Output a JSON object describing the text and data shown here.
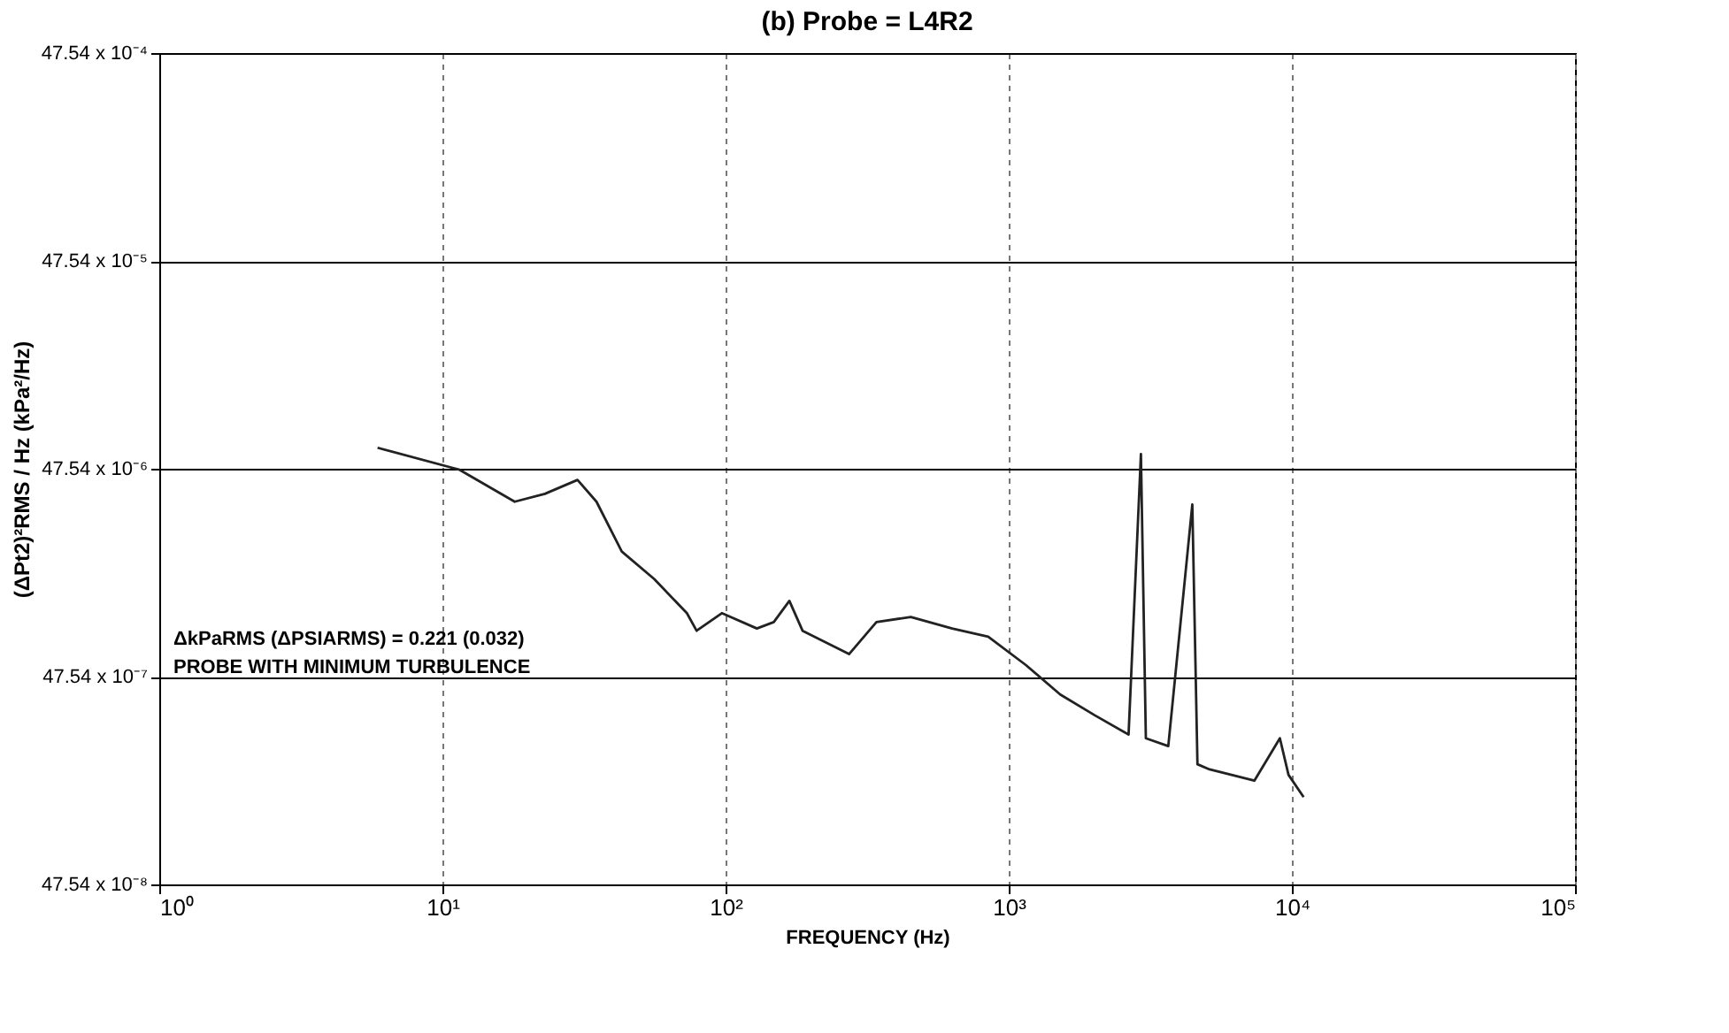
{
  "chart_data": {
    "type": "line",
    "title": "(b) Probe = L4R2",
    "xlabel": "FREQUENCY (Hz)",
    "ylabel": "(ΔPt2)²RMS / Hz  (kPa²/Hz)",
    "log": "xy",
    "grid": true,
    "line_style": "solid",
    "marker": "none",
    "legend": false,
    "xlim": [
      1,
      100000
    ],
    "xticks": [
      {
        "value": 1,
        "label": "10⁰"
      },
      {
        "value": 10,
        "label": "10¹"
      },
      {
        "value": 100,
        "label": "10²"
      },
      {
        "value": 1000,
        "label": "10³"
      },
      {
        "value": 10000,
        "label": "10⁴"
      },
      {
        "value": 100000,
        "label": "10⁵"
      }
    ],
    "ylim": [
      4.754e-07,
      0.004754
    ],
    "yticks": [
      {
        "value": 4.754e-07,
        "label": "47.54 x 10⁻⁸"
      },
      {
        "value": 4.754e-06,
        "label": "47.54 x 10⁻⁷"
      },
      {
        "value": 4.754e-05,
        "label": "47.54 x 10⁻⁶"
      },
      {
        "value": 0.0004754,
        "label": "47.54 x 10⁻⁵"
      },
      {
        "value": 0.004754,
        "label": "47.54 x 10⁻⁴"
      }
    ],
    "annotations": [
      "ΔkPaRMS (ΔPSIARMS) = 0.221 (0.032)",
      "PROBE WITH MINIMUM TURBULENCE"
    ],
    "series": [
      {
        "color": "#222222",
        "x": [
          5.9,
          11.5,
          18,
          23,
          30,
          35,
          43,
          56,
          73,
          79,
          97,
          129,
          148,
          168,
          187,
          273,
          341,
          451,
          631,
          846,
          1150,
          1520,
          2010,
          2650,
          2930,
          3050,
          3660,
          4450,
          4640,
          5120,
          7370,
          9070,
          9730,
          11000
        ],
        "values": [
          6e-05,
          4.7e-05,
          3.3e-05,
          3.6e-05,
          4.2e-05,
          3.3e-05,
          1.9e-05,
          1.4e-05,
          9.6e-06,
          7.9e-06,
          9.6e-06,
          8.1e-06,
          8.7e-06,
          1.1e-05,
          7.9e-06,
          6.1e-06,
          8.7e-06,
          9.2e-06,
          8.1e-06,
          7.4e-06,
          5.4e-06,
          3.9e-06,
          3.1e-06,
          2.5e-06,
          5.6e-05,
          2.4e-06,
          2.2e-06,
          3.2e-05,
          1.8e-06,
          1.7e-06,
          1.5e-06,
          2.4e-06,
          1.6e-06,
          1.25e-06
        ]
      }
    ]
  }
}
